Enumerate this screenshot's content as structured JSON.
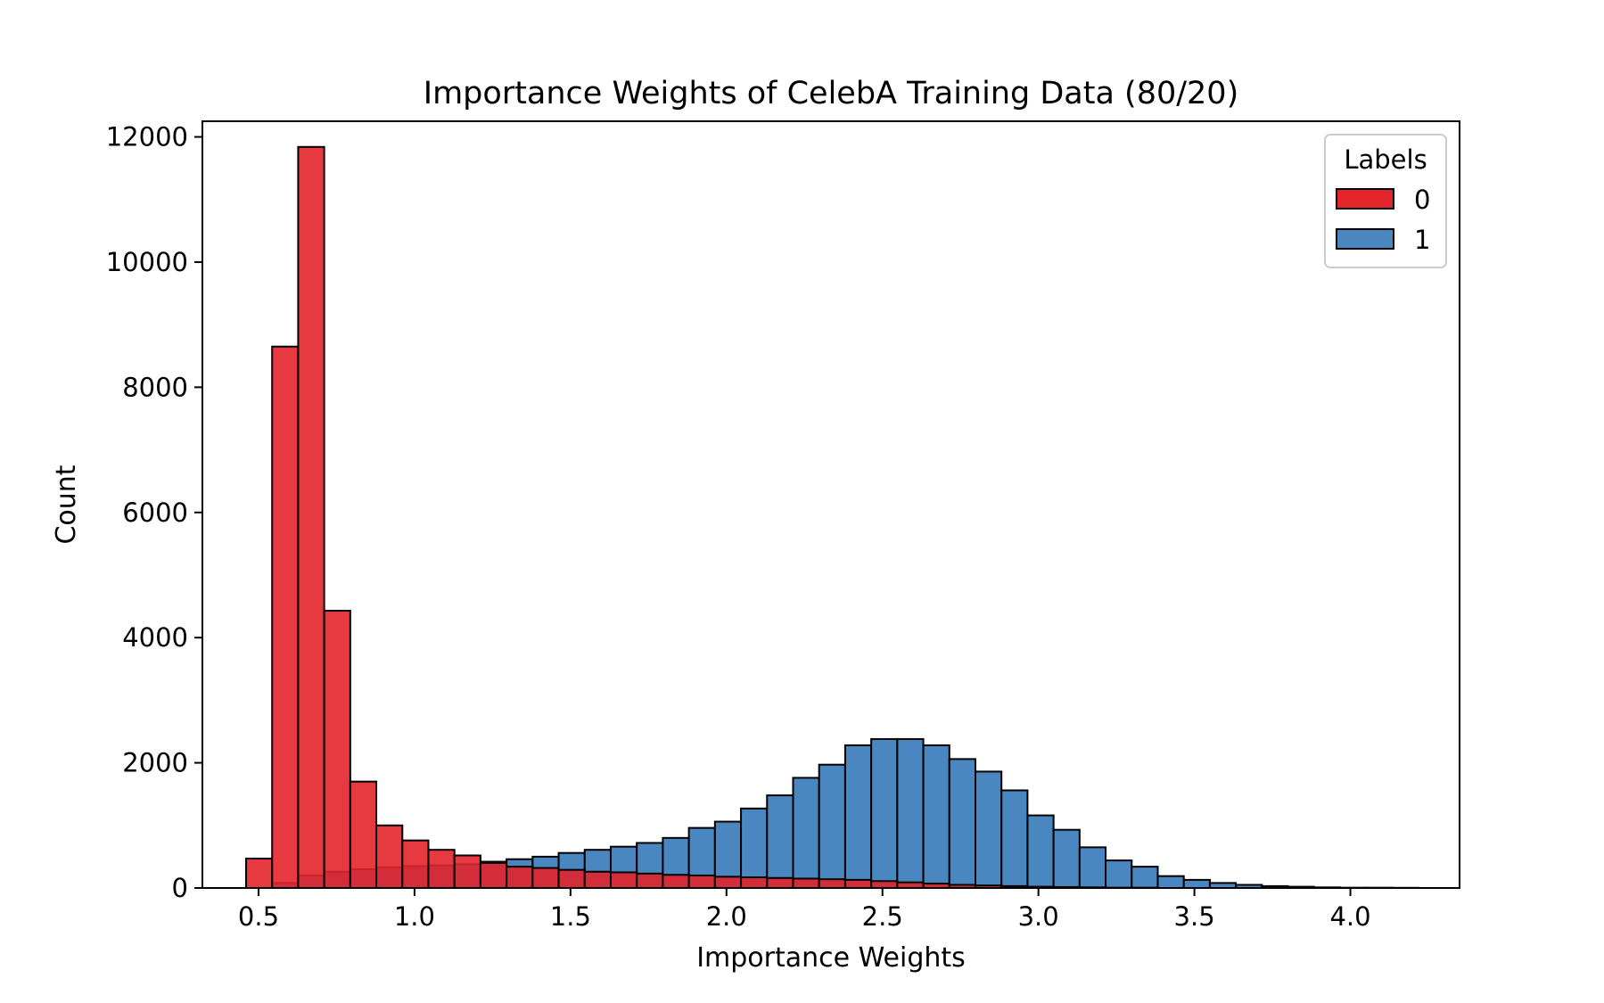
{
  "chart_data": {
    "type": "bar",
    "title": "Importance Weights of CelebA Training Data (80/20)",
    "xlabel": "Importance Weights",
    "ylabel": "Count",
    "xlim": [
      0.32,
      4.35
    ],
    "ylim": [
      0,
      12250
    ],
    "xticks": [
      "0.5",
      "1.0",
      "1.5",
      "2.0",
      "2.5",
      "3.0",
      "3.5",
      "4.0"
    ],
    "xtick_values": [
      0.5,
      1.0,
      1.5,
      2.0,
      2.5,
      3.0,
      3.5,
      4.0
    ],
    "yticks": [
      "0",
      "2000",
      "4000",
      "6000",
      "8000",
      "10000",
      "12000"
    ],
    "ytick_values": [
      0,
      2000,
      4000,
      6000,
      8000,
      10000,
      12000
    ],
    "grid": false,
    "legend": {
      "title": "Labels",
      "placement": "upper right",
      "entries": [
        "0",
        "1"
      ]
    },
    "bin_start": 0.46,
    "bin_width": 0.0835,
    "series": [
      {
        "name": "1",
        "color": "#4a86c0",
        "values": [
          0,
          80,
          200,
          260,
          300,
          330,
          350,
          360,
          380,
          420,
          460,
          500,
          560,
          610,
          660,
          720,
          800,
          960,
          1060,
          1270,
          1480,
          1760,
          1970,
          2280,
          2380,
          2380,
          2280,
          2060,
          1860,
          1560,
          1160,
          930,
          650,
          440,
          340,
          190,
          130,
          80,
          50,
          30,
          20,
          10,
          5,
          5,
          3
        ]
      },
      {
        "name": "0",
        "color": "#e3242b",
        "values": [
          470,
          8650,
          11840,
          4430,
          1700,
          1000,
          760,
          610,
          520,
          400,
          340,
          320,
          290,
          260,
          250,
          230,
          210,
          200,
          180,
          170,
          160,
          150,
          140,
          130,
          110,
          90,
          70,
          50,
          40,
          30,
          20,
          15,
          10,
          5,
          5,
          0,
          0,
          0,
          0,
          0,
          0,
          0,
          0,
          0,
          0
        ]
      }
    ]
  }
}
